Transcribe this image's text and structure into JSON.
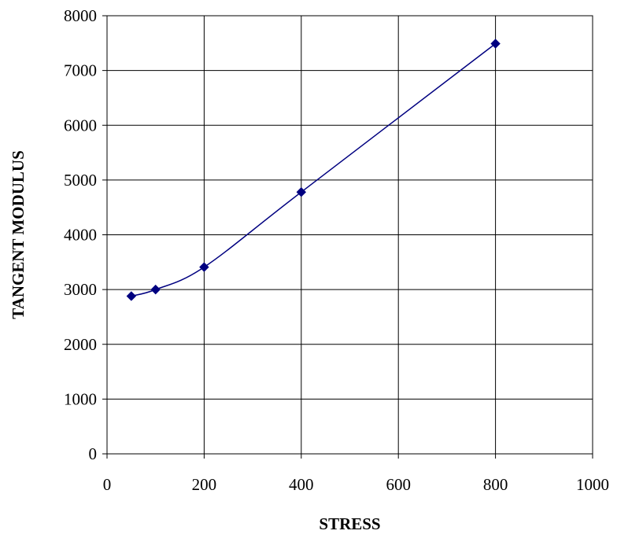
{
  "chart_data": {
    "type": "line",
    "title": "",
    "xlabel": "STRESS",
    "ylabel": "TANGENT MODULUS",
    "xlim": [
      0,
      1000
    ],
    "ylim": [
      0,
      8000
    ],
    "x_ticks": [
      0,
      200,
      400,
      600,
      800,
      1000
    ],
    "y_ticks": [
      0,
      1000,
      2000,
      3000,
      4000,
      5000,
      6000,
      7000,
      8000
    ],
    "grid": true,
    "legend": "none",
    "series": [
      {
        "color": "#000080",
        "marker": "diamond",
        "smooth": true,
        "points": [
          {
            "x": 50,
            "y": 2880
          },
          {
            "x": 100,
            "y": 3000
          },
          {
            "x": 200,
            "y": 3410
          },
          {
            "x": 400,
            "y": 4780
          },
          {
            "x": 800,
            "y": 7490
          }
        ]
      }
    ]
  }
}
